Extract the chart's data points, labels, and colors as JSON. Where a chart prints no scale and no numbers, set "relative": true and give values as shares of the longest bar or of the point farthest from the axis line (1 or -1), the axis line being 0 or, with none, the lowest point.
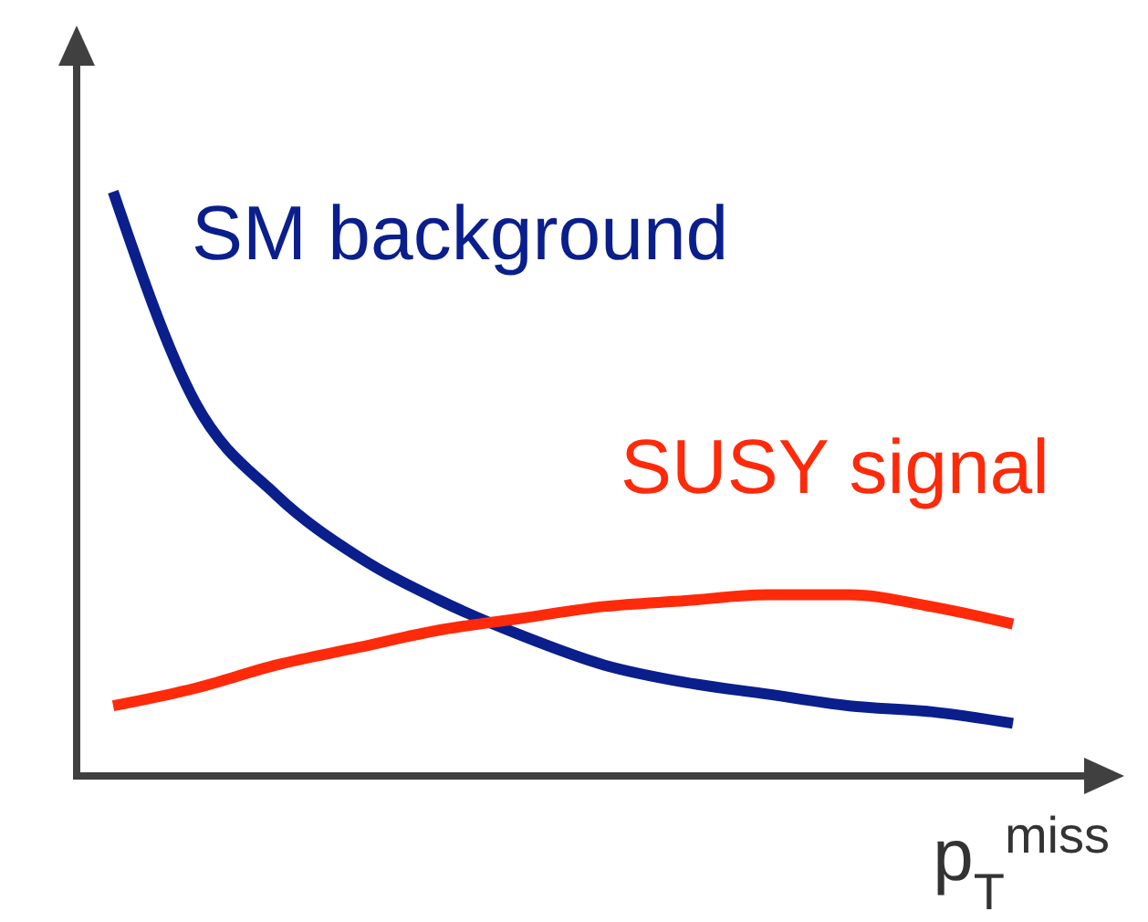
{
  "chart_data": {
    "type": "line",
    "relative": true,
    "xlabel": "p$_{T}$$^{miss}$",
    "categories": [
      null,
      null,
      null,
      null,
      null,
      null,
      null,
      null,
      null,
      null,
      null,
      null
    ],
    "series": [
      {
        "name": "SM background",
        "color": "#0a1e8c",
        "values": [
          1,
          0.64,
          0.48,
          0.375,
          0.3,
          0.24,
          0.19,
          0.16,
          0.14,
          0.12,
          0.11,
          0.09
        ]
      },
      {
        "name": "SUSY signal",
        "color": "#ff2a0a",
        "values": [
          0.12,
          0.15,
          0.19,
          0.22,
          0.25,
          0.27,
          0.29,
          0.3,
          0.31,
          0.31,
          0.29,
          0.26
        ]
      }
    ]
  }
}
